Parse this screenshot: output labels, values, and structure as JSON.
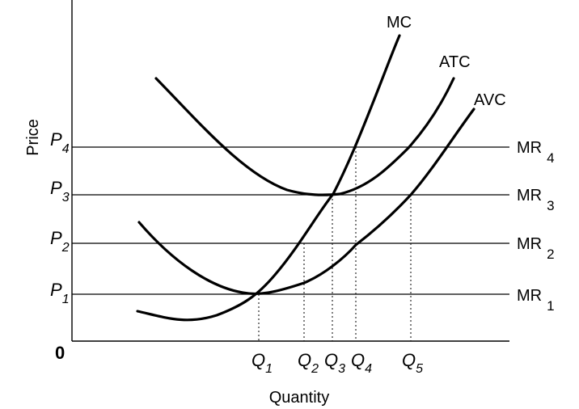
{
  "diagram": {
    "axes": {
      "y_label": "Price",
      "x_label": "Quantity",
      "origin_label": "0"
    },
    "price_labels": [
      {
        "letter": "P",
        "sub": "4"
      },
      {
        "letter": "P",
        "sub": "3"
      },
      {
        "letter": "P",
        "sub": "2"
      },
      {
        "letter": "P",
        "sub": "1"
      }
    ],
    "mr_labels": [
      {
        "letter": "MR",
        "sub": "4"
      },
      {
        "letter": "MR",
        "sub": "3"
      },
      {
        "letter": "MR",
        "sub": "2"
      },
      {
        "letter": "MR",
        "sub": "1"
      }
    ],
    "quantity_labels": [
      {
        "letter": "Q",
        "sub": "1"
      },
      {
        "letter": "Q",
        "sub": "2"
      },
      {
        "letter": "Q",
        "sub": "3"
      },
      {
        "letter": "Q",
        "sub": "4"
      },
      {
        "letter": "Q",
        "sub": "5"
      }
    ],
    "curve_labels": {
      "mc": "MC",
      "atc": "ATC",
      "avc": "AVC"
    }
  }
}
